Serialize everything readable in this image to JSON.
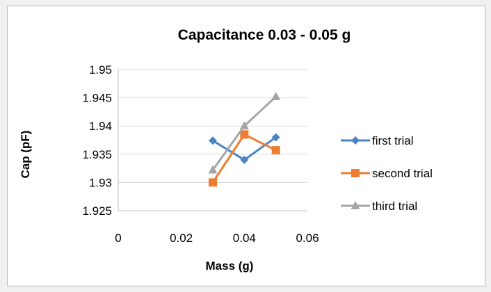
{
  "chart_data": {
    "type": "line",
    "title": "Capacitance 0.03 - 0.05 g",
    "xlabel": "Mass (g)",
    "ylabel": "Cap (pF)",
    "xlim": [
      0,
      0.06
    ],
    "ylim": [
      1.925,
      1.95
    ],
    "x_ticks": [
      "0",
      "0.02",
      "0.04",
      "0.06"
    ],
    "y_ticks": [
      "1.95",
      "1.945",
      "1.94",
      "1.935",
      "1.93",
      "1.925"
    ],
    "grid": "horizontal",
    "legend_position": "right",
    "x": [
      0.03,
      0.04,
      0.05
    ],
    "series": [
      {
        "name": "first trial",
        "values": [
          1.9374,
          1.934,
          1.938
        ],
        "color": "#4a84c4",
        "marker": "diamond"
      },
      {
        "name": "second trial",
        "values": [
          1.93,
          1.9385,
          1.9357
        ],
        "color": "#ee7d31",
        "marker": "square"
      },
      {
        "name": "third trial",
        "values": [
          1.9322,
          1.94,
          1.9452
        ],
        "color": "#a5a5a5",
        "marker": "triangle"
      }
    ]
  }
}
